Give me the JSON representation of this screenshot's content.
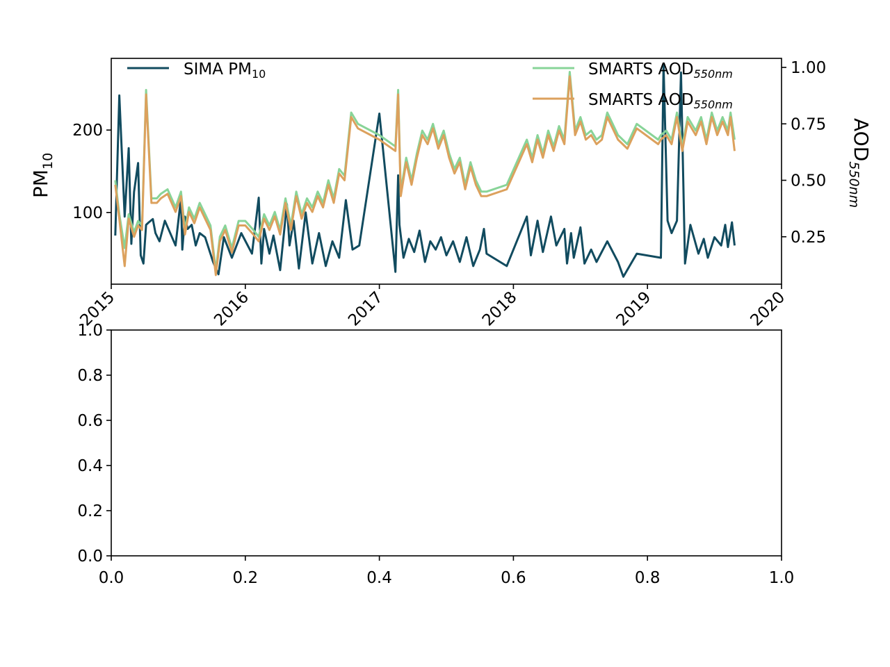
{
  "chart_data": [
    {
      "type": "line",
      "title": "",
      "ylabel": {
        "base": "PM",
        "sub": "10"
      },
      "y2label": {
        "base": "AOD",
        "sub": "550nm"
      },
      "x_ticks": [
        "2015",
        "2016",
        "2017",
        "2018",
        "2019",
        "2020"
      ],
      "xlim": [
        2015.0,
        2020.0
      ],
      "ylim": [
        13,
        287
      ],
      "y_ticks": [
        100,
        200
      ],
      "y2lim": [
        0.04,
        1.04
      ],
      "y2_ticks": [
        0.25,
        0.5,
        0.75,
        1.0
      ],
      "y2_tick_labels": [
        "0.25",
        "0.50",
        "0.75",
        "1.00"
      ],
      "grid": false,
      "legend": [
        {
          "base": "SIMA PM",
          "sub": "10",
          "placement": "upper-left",
          "color": "#114b5f"
        },
        {
          "base": "SMARTS AOD",
          "sub": "550nm",
          "placement": "upper-right",
          "color": "#88d498"
        },
        {
          "base": "SMARTS AOD",
          "sub": "550nm",
          "placement": "upper-right",
          "color": "#dca15d"
        }
      ],
      "series": [
        {
          "name": "SIMA PM10",
          "axis": "left",
          "color": "#114b5f",
          "x": [
            2015.03,
            2015.06,
            2015.1,
            2015.13,
            2015.15,
            2015.17,
            2015.2,
            2015.22,
            2015.24,
            2015.26,
            2015.28,
            2015.31,
            2015.33,
            2015.36,
            2015.4,
            2015.48,
            2015.52,
            2015.53,
            2015.55,
            2015.57,
            2015.6,
            2015.63,
            2015.66,
            2015.7,
            2015.73,
            2015.76,
            2015.8,
            2015.84,
            2015.9,
            2015.97,
            2016.05,
            2016.1,
            2016.12,
            2016.14,
            2016.18,
            2016.21,
            2016.26,
            2016.31,
            2016.33,
            2016.36,
            2016.4,
            2016.45,
            2016.5,
            2016.55,
            2016.6,
            2016.65,
            2016.7,
            2016.75,
            2016.8,
            2016.85,
            2017.0,
            2017.12,
            2017.14,
            2017.15,
            2017.18,
            2017.22,
            2017.26,
            2017.3,
            2017.34,
            2017.38,
            2017.42,
            2017.46,
            2017.5,
            2017.55,
            2017.6,
            2017.65,
            2017.7,
            2017.75,
            2017.78,
            2017.8,
            2017.95,
            2018.1,
            2018.13,
            2018.18,
            2018.22,
            2018.28,
            2018.32,
            2018.38,
            2018.4,
            2018.43,
            2018.45,
            2018.5,
            2018.53,
            2018.58,
            2018.62,
            2018.7,
            2018.78,
            2018.82,
            2018.92,
            2019.1,
            2019.12,
            2019.15,
            2019.18,
            2019.22,
            2019.25,
            2019.28,
            2019.32,
            2019.38,
            2019.42,
            2019.45,
            2019.5,
            2019.55,
            2019.58,
            2019.6,
            2019.63,
            2019.65
          ],
          "y": [
            72,
            242,
            95,
            178,
            62,
            125,
            160,
            48,
            38,
            85,
            88,
            92,
            75,
            65,
            90,
            60,
            118,
            55,
            95,
            80,
            85,
            60,
            75,
            70,
            55,
            40,
            25,
            70,
            45,
            75,
            50,
            118,
            38,
            80,
            50,
            72,
            30,
            110,
            60,
            90,
            32,
            100,
            38,
            75,
            35,
            65,
            45,
            115,
            55,
            60,
            220,
            28,
            145,
            85,
            45,
            68,
            52,
            78,
            40,
            65,
            55,
            70,
            48,
            65,
            40,
            70,
            35,
            55,
            80,
            50,
            35,
            95,
            48,
            90,
            52,
            95,
            60,
            80,
            38,
            75,
            45,
            82,
            38,
            55,
            40,
            65,
            40,
            22,
            50,
            45,
            280,
            90,
            75,
            90,
            270,
            38,
            85,
            50,
            68,
            45,
            70,
            60,
            85,
            58,
            88,
            60
          ]
        },
        {
          "name": "SMARTS AOD550nm",
          "axis": "right",
          "color": "#88d498",
          "x": [
            2015.03,
            2015.06,
            2015.1,
            2015.13,
            2015.17,
            2015.2,
            2015.23,
            2015.26,
            2015.3,
            2015.34,
            2015.37,
            2015.42,
            2015.48,
            2015.52,
            2015.55,
            2015.58,
            2015.62,
            2015.66,
            2015.7,
            2015.74,
            2015.78,
            2015.81,
            2015.85,
            2015.9,
            2015.95,
            2016.0,
            2016.06,
            2016.1,
            2016.14,
            2016.18,
            2016.22,
            2016.26,
            2016.3,
            2016.34,
            2016.38,
            2016.42,
            2016.46,
            2016.5,
            2016.54,
            2016.58,
            2016.62,
            2016.66,
            2016.7,
            2016.74,
            2016.79,
            2016.84,
            2017.0,
            2017.12,
            2017.14,
            2017.16,
            2017.2,
            2017.24,
            2017.28,
            2017.32,
            2017.36,
            2017.4,
            2017.44,
            2017.48,
            2017.52,
            2017.56,
            2017.6,
            2017.64,
            2017.68,
            2017.72,
            2017.76,
            2017.8,
            2017.95,
            2018.1,
            2018.14,
            2018.18,
            2018.22,
            2018.26,
            2018.3,
            2018.34,
            2018.38,
            2018.42,
            2018.46,
            2018.5,
            2018.54,
            2018.58,
            2018.62,
            2018.66,
            2018.7,
            2018.78,
            2018.85,
            2018.92,
            2019.08,
            2019.1,
            2019.14,
            2019.18,
            2019.22,
            2019.26,
            2019.3,
            2019.36,
            2019.4,
            2019.44,
            2019.48,
            2019.52,
            2019.56,
            2019.6,
            2019.62,
            2019.65
          ],
          "y": [
            0.5,
            0.35,
            0.2,
            0.35,
            0.27,
            0.32,
            0.3,
            0.9,
            0.42,
            0.42,
            0.44,
            0.46,
            0.38,
            0.45,
            0.28,
            0.38,
            0.33,
            0.4,
            0.35,
            0.3,
            0.1,
            0.25,
            0.3,
            0.2,
            0.32,
            0.32,
            0.28,
            0.25,
            0.35,
            0.3,
            0.36,
            0.28,
            0.42,
            0.3,
            0.45,
            0.35,
            0.42,
            0.38,
            0.45,
            0.4,
            0.5,
            0.42,
            0.55,
            0.52,
            0.8,
            0.75,
            0.7,
            0.65,
            0.9,
            0.45,
            0.6,
            0.5,
            0.62,
            0.72,
            0.68,
            0.75,
            0.66,
            0.72,
            0.62,
            0.55,
            0.6,
            0.48,
            0.58,
            0.5,
            0.45,
            0.45,
            0.48,
            0.68,
            0.6,
            0.7,
            0.62,
            0.72,
            0.65,
            0.74,
            0.68,
            0.98,
            0.72,
            0.78,
            0.7,
            0.72,
            0.68,
            0.7,
            0.8,
            0.7,
            0.66,
            0.75,
            0.68,
            0.7,
            0.72,
            0.68,
            0.8,
            0.65,
            0.78,
            0.72,
            0.78,
            0.68,
            0.8,
            0.72,
            0.78,
            0.72,
            0.8,
            0.68
          ]
        },
        {
          "name": "SMARTS AOD550nm",
          "axis": "right",
          "color": "#dca15d",
          "x": [
            2015.03,
            2015.06,
            2015.1,
            2015.13,
            2015.17,
            2015.2,
            2015.23,
            2015.26,
            2015.3,
            2015.34,
            2015.37,
            2015.42,
            2015.48,
            2015.52,
            2015.55,
            2015.58,
            2015.62,
            2015.66,
            2015.7,
            2015.74,
            2015.78,
            2015.81,
            2015.85,
            2015.9,
            2015.95,
            2016.0,
            2016.06,
            2016.1,
            2016.14,
            2016.18,
            2016.22,
            2016.26,
            2016.3,
            2016.34,
            2016.38,
            2016.42,
            2016.46,
            2016.5,
            2016.54,
            2016.58,
            2016.62,
            2016.66,
            2016.7,
            2016.74,
            2016.79,
            2016.84,
            2017.0,
            2017.12,
            2017.14,
            2017.16,
            2017.2,
            2017.24,
            2017.28,
            2017.32,
            2017.36,
            2017.4,
            2017.44,
            2017.48,
            2017.52,
            2017.56,
            2017.6,
            2017.64,
            2017.68,
            2017.72,
            2017.76,
            2017.8,
            2017.95,
            2018.1,
            2018.14,
            2018.18,
            2018.22,
            2018.26,
            2018.3,
            2018.34,
            2018.38,
            2018.42,
            2018.46,
            2018.5,
            2018.54,
            2018.58,
            2018.62,
            2018.66,
            2018.7,
            2018.78,
            2018.85,
            2018.92,
            2019.08,
            2019.1,
            2019.14,
            2019.18,
            2019.22,
            2019.26,
            2019.3,
            2019.36,
            2019.4,
            2019.44,
            2019.48,
            2019.52,
            2019.56,
            2019.6,
            2019.62,
            2019.65
          ],
          "y": [
            0.48,
            0.33,
            0.12,
            0.33,
            0.25,
            0.3,
            0.28,
            0.88,
            0.4,
            0.4,
            0.42,
            0.44,
            0.36,
            0.43,
            0.26,
            0.36,
            0.31,
            0.38,
            0.33,
            0.28,
            0.08,
            0.23,
            0.28,
            0.18,
            0.3,
            0.3,
            0.26,
            0.23,
            0.33,
            0.28,
            0.34,
            0.26,
            0.4,
            0.28,
            0.43,
            0.33,
            0.4,
            0.36,
            0.43,
            0.38,
            0.48,
            0.4,
            0.53,
            0.5,
            0.78,
            0.73,
            0.68,
            0.63,
            0.88,
            0.43,
            0.58,
            0.48,
            0.6,
            0.7,
            0.66,
            0.73,
            0.64,
            0.7,
            0.6,
            0.53,
            0.58,
            0.46,
            0.56,
            0.48,
            0.43,
            0.43,
            0.46,
            0.66,
            0.58,
            0.68,
            0.6,
            0.7,
            0.63,
            0.72,
            0.66,
            0.96,
            0.7,
            0.76,
            0.68,
            0.7,
            0.66,
            0.68,
            0.78,
            0.68,
            0.64,
            0.73,
            0.66,
            0.68,
            0.7,
            0.66,
            0.78,
            0.63,
            0.76,
            0.7,
            0.76,
            0.66,
            0.78,
            0.7,
            0.76,
            0.7,
            0.78,
            0.63
          ]
        }
      ]
    },
    {
      "type": "line",
      "title": "",
      "xlim": [
        0.0,
        1.0
      ],
      "ylim": [
        0.0,
        1.0
      ],
      "x_ticks": [
        "0.0",
        "0.2",
        "0.4",
        "0.6",
        "0.8",
        "1.0"
      ],
      "y_ticks": [
        "0.0",
        "0.2",
        "0.4",
        "0.6",
        "0.8",
        "1.0"
      ],
      "grid": false,
      "series": []
    }
  ]
}
